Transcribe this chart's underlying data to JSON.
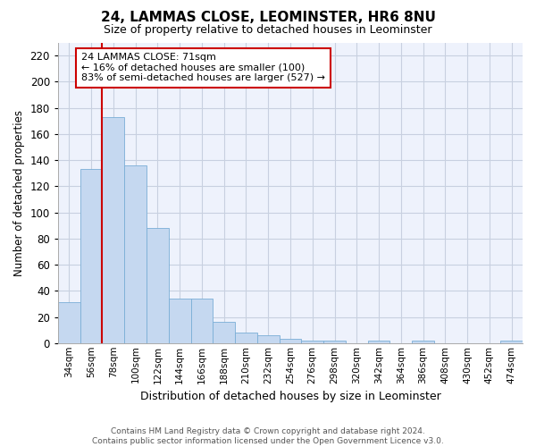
{
  "title": "24, LAMMAS CLOSE, LEOMINSTER, HR6 8NU",
  "subtitle": "Size of property relative to detached houses in Leominster",
  "xlabel": "Distribution of detached houses by size in Leominster",
  "ylabel": "Number of detached properties",
  "bar_color": "#c5d8f0",
  "bar_edge_color": "#7aaed6",
  "grid_color": "#c8d0e0",
  "background_color": "#eef2fc",
  "vline_color": "#cc0000",
  "vline_x_idx": 2,
  "annotation_text_line1": "24 LAMMAS CLOSE: 71sqm",
  "annotation_text_line2": "← 16% of detached houses are smaller (100)",
  "annotation_text_line3": "83% of semi-detached houses are larger (527) →",
  "categories": [
    "34sqm",
    "56sqm",
    "78sqm",
    "100sqm",
    "122sqm",
    "144sqm",
    "166sqm",
    "188sqm",
    "210sqm",
    "232sqm",
    "254sqm",
    "276sqm",
    "298sqm",
    "320sqm",
    "342sqm",
    "364sqm",
    "386sqm",
    "408sqm",
    "430sqm",
    "452sqm",
    "474sqm"
  ],
  "values": [
    31,
    133,
    173,
    136,
    88,
    34,
    34,
    16,
    8,
    6,
    3,
    2,
    2,
    0,
    2,
    0,
    2,
    0,
    0,
    0,
    2
  ],
  "ylim": [
    0,
    230
  ],
  "yticks": [
    0,
    20,
    40,
    60,
    80,
    100,
    120,
    140,
    160,
    180,
    200,
    220
  ],
  "footer_line1": "Contains HM Land Registry data © Crown copyright and database right 2024.",
  "footer_line2": "Contains public sector information licensed under the Open Government Licence v3.0."
}
